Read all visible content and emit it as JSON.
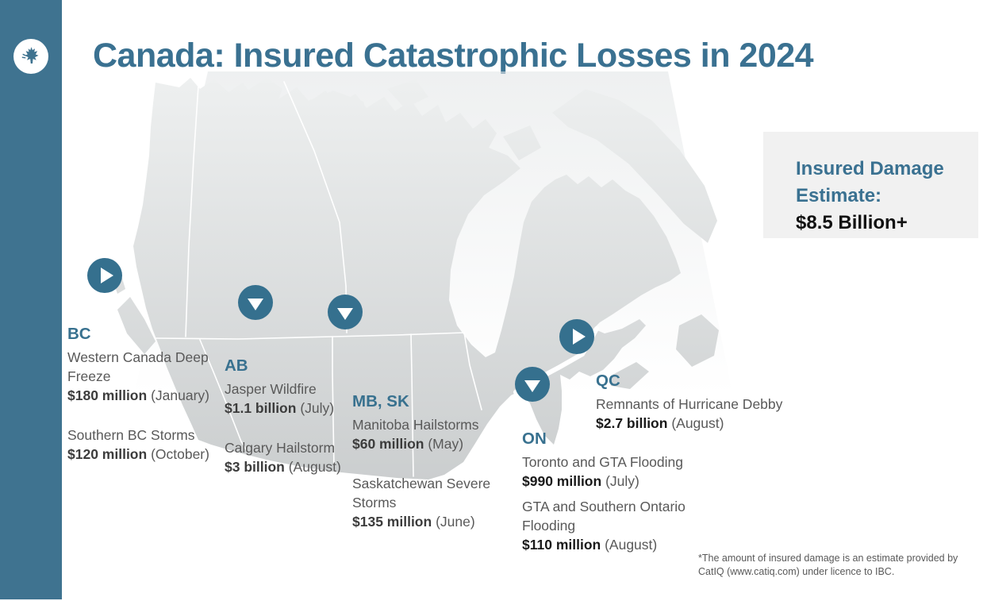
{
  "title": "Canada: Insured Catastrophic Losses in 2024",
  "logo": {
    "icon": "maple-leaf-icon"
  },
  "estimate_box": {
    "label": "Insured Damage Estimate:",
    "value": "$8.5 Billion+"
  },
  "regions": [
    {
      "code": "BC",
      "events": [
        {
          "name": "Western Canada Deep Freeze",
          "amount": "$180 million",
          "period": "(January)"
        },
        {
          "name": "Southern BC Storms",
          "amount": "$120 million",
          "period": "(October)"
        }
      ]
    },
    {
      "code": "AB",
      "events": [
        {
          "name": "Jasper Wildfire",
          "amount": "$1.1 billion",
          "period": "(July)"
        },
        {
          "name": "Calgary Hailstorm",
          "amount": "$3 billion",
          "period": "(August)"
        }
      ]
    },
    {
      "code": "MB, SK",
      "events": [
        {
          "name": "Manitoba Hailstorms",
          "amount": "$60 million",
          "period": "(May)"
        },
        {
          "name": "Saskatchewan Severe Storms",
          "amount": "$135 million",
          "period": "(June)"
        }
      ]
    },
    {
      "code": "ON",
      "events": [
        {
          "name": "Toronto and GTA Flooding",
          "amount": "$990 million",
          "period": "(July)"
        },
        {
          "name": "GTA and Southern Ontario Flooding",
          "amount": "$110 million",
          "period": "(August)"
        }
      ]
    },
    {
      "code": "QC",
      "events": [
        {
          "name": "Remnants of Hurricane Debby",
          "amount": "$2.7 billion",
          "period": "(August)"
        }
      ]
    }
  ],
  "markers": [
    {
      "region": "BC",
      "icon": "play-icon"
    },
    {
      "region": "AB",
      "icon": "down-arrow-icon"
    },
    {
      "region": "SK",
      "icon": "down-arrow-icon"
    },
    {
      "region": "QC",
      "icon": "play-icon"
    },
    {
      "region": "ON",
      "icon": "down-arrow-icon"
    }
  ],
  "footnote": {
    "text": "*The amount of insured damage is an estimate provided by CatIQ (www.catiq.com) under licence to IBC."
  },
  "colors": {
    "accent": "#3a7191",
    "sidebar": "#3f7390",
    "marker": "#35708e",
    "map_fill_top": "#edefef",
    "map_fill_bottom": "#c8cbcc",
    "estimate_box_bg": "#f1f1f1",
    "body_text": "#595959"
  }
}
